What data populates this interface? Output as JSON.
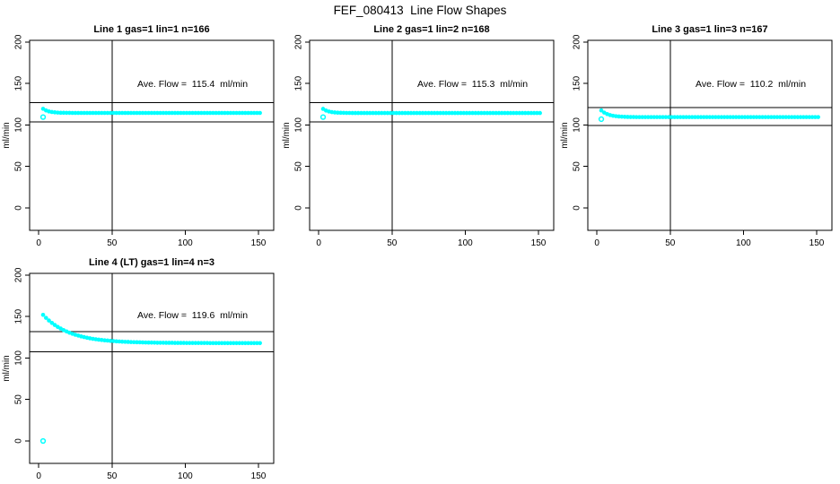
{
  "page": {
    "title": "FEF_080413  Line Flow Shapes",
    "background": "#ffffff",
    "accent_color": "#00ffff"
  },
  "chart_data": [
    {
      "type": "scatter",
      "title": "Line 1 gas=1 lin=1 n=166",
      "annotation": "Ave. Flow =  115.4  ml/min",
      "ave_flow": 115.4,
      "unit": "ml/min",
      "xlabel": "",
      "ylabel": "ml/min",
      "x_ticks": [
        0,
        50,
        100,
        150
      ],
      "y_ticks": [
        0,
        50,
        100,
        150,
        200
      ],
      "xlim": [
        -6.2,
        160.4
      ],
      "ylim": [
        -27,
        202
      ],
      "grid": false,
      "vline_x": 50,
      "hlines": [
        126.9,
        103.9
      ],
      "point_color": "#00ffff",
      "annotation_pos": [
        105,
        146
      ],
      "outliers": [
        [
          3,
          109.5
        ]
      ],
      "points": [
        [
          3,
          119.5
        ],
        [
          5,
          117.5
        ],
        [
          7,
          116.3
        ],
        [
          9,
          115.6
        ],
        [
          11,
          115.2
        ],
        [
          13,
          114.9
        ],
        [
          15,
          114.7
        ],
        [
          17,
          114.7
        ],
        [
          19,
          114.6
        ],
        [
          21,
          114.6
        ],
        [
          23,
          114.5
        ],
        [
          25,
          114.5
        ],
        [
          27,
          114.5
        ],
        [
          29,
          114.5
        ],
        [
          31,
          114.5
        ],
        [
          33,
          114.5
        ],
        [
          35,
          114.5
        ],
        [
          37,
          114.5
        ],
        [
          39,
          114.5
        ],
        [
          41,
          114.5
        ],
        [
          43,
          114.5
        ],
        [
          45,
          114.5
        ],
        [
          47,
          114.5
        ],
        [
          49,
          114.5
        ],
        [
          51,
          114.5
        ],
        [
          53,
          114.5
        ],
        [
          55,
          114.5
        ],
        [
          57,
          114.5
        ],
        [
          59,
          114.5
        ],
        [
          61,
          114.5
        ],
        [
          63,
          114.5
        ],
        [
          65,
          114.5
        ],
        [
          67,
          114.5
        ],
        [
          69,
          114.5
        ],
        [
          71,
          114.5
        ],
        [
          73,
          114.5
        ],
        [
          75,
          114.5
        ],
        [
          77,
          114.5
        ],
        [
          79,
          114.5
        ],
        [
          81,
          114.5
        ],
        [
          83,
          114.5
        ],
        [
          85,
          114.5
        ],
        [
          87,
          114.5
        ],
        [
          89,
          114.5
        ],
        [
          91,
          114.5
        ],
        [
          93,
          114.5
        ],
        [
          95,
          114.5
        ],
        [
          97,
          114.5
        ],
        [
          99,
          114.5
        ],
        [
          101,
          114.5
        ],
        [
          103,
          114.5
        ],
        [
          105,
          114.5
        ],
        [
          107,
          114.5
        ],
        [
          109,
          114.5
        ],
        [
          111,
          114.5
        ],
        [
          113,
          114.5
        ],
        [
          115,
          114.5
        ],
        [
          117,
          114.5
        ],
        [
          119,
          114.5
        ],
        [
          121,
          114.5
        ],
        [
          123,
          114.5
        ],
        [
          125,
          114.5
        ],
        [
          127,
          114.5
        ],
        [
          129,
          114.5
        ],
        [
          131,
          114.5
        ],
        [
          133,
          114.5
        ],
        [
          135,
          114.5
        ],
        [
          137,
          114.5
        ],
        [
          139,
          114.5
        ],
        [
          141,
          114.5
        ],
        [
          143,
          114.5
        ],
        [
          145,
          114.5
        ],
        [
          147,
          114.5
        ],
        [
          149,
          114.5
        ],
        [
          151,
          114.5
        ]
      ]
    },
    {
      "type": "scatter",
      "title": "Line 2 gas=1 lin=2 n=168",
      "annotation": "Ave. Flow =  115.3  ml/min",
      "ave_flow": 115.3,
      "unit": "ml/min",
      "xlabel": "",
      "ylabel": "ml/min",
      "x_ticks": [
        0,
        50,
        100,
        150
      ],
      "y_ticks": [
        0,
        50,
        100,
        150,
        200
      ],
      "xlim": [
        -6.2,
        160.4
      ],
      "ylim": [
        -27,
        202
      ],
      "grid": false,
      "vline_x": 50,
      "hlines": [
        126.8,
        103.8
      ],
      "point_color": "#00ffff",
      "annotation_pos": [
        105,
        146
      ],
      "outliers": [
        [
          3,
          109.5
        ]
      ],
      "points": [
        [
          3,
          119.4
        ],
        [
          5,
          117.4
        ],
        [
          7,
          116.2
        ],
        [
          9,
          115.5
        ],
        [
          11,
          115.1
        ],
        [
          13,
          114.8
        ],
        [
          15,
          114.7
        ],
        [
          17,
          114.6
        ],
        [
          19,
          114.5
        ],
        [
          21,
          114.5
        ],
        [
          23,
          114.4
        ],
        [
          25,
          114.4
        ],
        [
          27,
          114.4
        ],
        [
          29,
          114.4
        ],
        [
          31,
          114.4
        ],
        [
          33,
          114.4
        ],
        [
          35,
          114.4
        ],
        [
          37,
          114.4
        ],
        [
          39,
          114.4
        ],
        [
          41,
          114.4
        ],
        [
          43,
          114.4
        ],
        [
          45,
          114.4
        ],
        [
          47,
          114.4
        ],
        [
          49,
          114.4
        ],
        [
          51,
          114.4
        ],
        [
          53,
          114.4
        ],
        [
          55,
          114.4
        ],
        [
          57,
          114.4
        ],
        [
          59,
          114.4
        ],
        [
          61,
          114.4
        ],
        [
          63,
          114.4
        ],
        [
          65,
          114.4
        ],
        [
          67,
          114.4
        ],
        [
          69,
          114.4
        ],
        [
          71,
          114.4
        ],
        [
          73,
          114.4
        ],
        [
          75,
          114.4
        ],
        [
          77,
          114.4
        ],
        [
          79,
          114.4
        ],
        [
          81,
          114.4
        ],
        [
          83,
          114.4
        ],
        [
          85,
          114.4
        ],
        [
          87,
          114.4
        ],
        [
          89,
          114.4
        ],
        [
          91,
          114.4
        ],
        [
          93,
          114.4
        ],
        [
          95,
          114.4
        ],
        [
          97,
          114.4
        ],
        [
          99,
          114.4
        ],
        [
          101,
          114.4
        ],
        [
          103,
          114.4
        ],
        [
          105,
          114.4
        ],
        [
          107,
          114.4
        ],
        [
          109,
          114.4
        ],
        [
          111,
          114.4
        ],
        [
          113,
          114.4
        ],
        [
          115,
          114.4
        ],
        [
          117,
          114.4
        ],
        [
          119,
          114.4
        ],
        [
          121,
          114.4
        ],
        [
          123,
          114.4
        ],
        [
          125,
          114.4
        ],
        [
          127,
          114.4
        ],
        [
          129,
          114.4
        ],
        [
          131,
          114.4
        ],
        [
          133,
          114.4
        ],
        [
          135,
          114.4
        ],
        [
          137,
          114.4
        ],
        [
          139,
          114.4
        ],
        [
          141,
          114.4
        ],
        [
          143,
          114.4
        ],
        [
          145,
          114.4
        ],
        [
          147,
          114.4
        ],
        [
          149,
          114.4
        ],
        [
          151,
          114.4
        ]
      ]
    },
    {
      "type": "scatter",
      "title": "Line 3 gas=1 lin=3 n=167",
      "annotation": "Ave. Flow =  110.2  ml/min",
      "ave_flow": 110.2,
      "unit": "ml/min",
      "xlabel": "",
      "ylabel": "ml/min",
      "x_ticks": [
        0,
        50,
        100,
        150
      ],
      "y_ticks": [
        0,
        50,
        100,
        150,
        200
      ],
      "xlim": [
        -6.2,
        160.4
      ],
      "ylim": [
        -27,
        202
      ],
      "grid": false,
      "vline_x": 50,
      "hlines": [
        121.2,
        99.2
      ],
      "point_color": "#00ffff",
      "annotation_pos": [
        105,
        146
      ],
      "outliers": [
        [
          3,
          107.0
        ]
      ],
      "points": [
        [
          3,
          117.5
        ],
        [
          5,
          114.9
        ],
        [
          7,
          113.1
        ],
        [
          9,
          111.9
        ],
        [
          11,
          111.1
        ],
        [
          13,
          110.6
        ],
        [
          15,
          110.2
        ],
        [
          17,
          110.0
        ],
        [
          19,
          109.8
        ],
        [
          21,
          109.7
        ],
        [
          23,
          109.6
        ],
        [
          25,
          109.6
        ],
        [
          27,
          109.5
        ],
        [
          29,
          109.5
        ],
        [
          31,
          109.5
        ],
        [
          33,
          109.5
        ],
        [
          35,
          109.5
        ],
        [
          37,
          109.5
        ],
        [
          39,
          109.5
        ],
        [
          41,
          109.5
        ],
        [
          43,
          109.5
        ],
        [
          45,
          109.5
        ],
        [
          47,
          109.5
        ],
        [
          49,
          109.5
        ],
        [
          51,
          109.5
        ],
        [
          53,
          109.5
        ],
        [
          55,
          109.5
        ],
        [
          57,
          109.5
        ],
        [
          59,
          109.5
        ],
        [
          61,
          109.5
        ],
        [
          63,
          109.5
        ],
        [
          65,
          109.5
        ],
        [
          67,
          109.5
        ],
        [
          69,
          109.5
        ],
        [
          71,
          109.5
        ],
        [
          73,
          109.5
        ],
        [
          75,
          109.5
        ],
        [
          77,
          109.5
        ],
        [
          79,
          109.5
        ],
        [
          81,
          109.5
        ],
        [
          83,
          109.5
        ],
        [
          85,
          109.5
        ],
        [
          87,
          109.5
        ],
        [
          89,
          109.5
        ],
        [
          91,
          109.5
        ],
        [
          93,
          109.5
        ],
        [
          95,
          109.5
        ],
        [
          97,
          109.5
        ],
        [
          99,
          109.5
        ],
        [
          101,
          109.5
        ],
        [
          103,
          109.5
        ],
        [
          105,
          109.5
        ],
        [
          107,
          109.5
        ],
        [
          109,
          109.5
        ],
        [
          111,
          109.5
        ],
        [
          113,
          109.5
        ],
        [
          115,
          109.5
        ],
        [
          117,
          109.5
        ],
        [
          119,
          109.5
        ],
        [
          121,
          109.5
        ],
        [
          123,
          109.5
        ],
        [
          125,
          109.5
        ],
        [
          127,
          109.5
        ],
        [
          129,
          109.5
        ],
        [
          131,
          109.5
        ],
        [
          133,
          109.5
        ],
        [
          135,
          109.5
        ],
        [
          137,
          109.5
        ],
        [
          139,
          109.5
        ],
        [
          141,
          109.5
        ],
        [
          143,
          109.5
        ],
        [
          145,
          109.5
        ],
        [
          147,
          109.5
        ],
        [
          149,
          109.5
        ],
        [
          151,
          109.5
        ]
      ]
    },
    {
      "type": "scatter",
      "title": "Line 4 (LT) gas=1 lin=4 n=3",
      "annotation": "Ave. Flow =  119.6  ml/min",
      "ave_flow": 119.6,
      "unit": "ml/min",
      "xlabel": "",
      "ylabel": "ml/min",
      "x_ticks": [
        0,
        50,
        100,
        150
      ],
      "y_ticks": [
        0,
        50,
        100,
        150,
        200
      ],
      "xlim": [
        -6.2,
        160.4
      ],
      "ylim": [
        -27,
        202
      ],
      "grid": false,
      "vline_x": 50,
      "hlines": [
        131.6,
        107.6
      ],
      "point_color": "#00ffff",
      "annotation_pos": [
        105,
        148
      ],
      "outliers": [
        [
          3,
          0
        ]
      ],
      "points": [
        [
          3,
          152.0
        ],
        [
          5,
          148.4
        ],
        [
          7,
          145.2
        ],
        [
          9,
          142.3
        ],
        [
          11,
          139.8
        ],
        [
          13,
          137.5
        ],
        [
          15,
          135.5
        ],
        [
          17,
          133.6
        ],
        [
          19,
          132.0
        ],
        [
          21,
          130.5
        ],
        [
          23,
          129.2
        ],
        [
          25,
          128.0
        ],
        [
          27,
          127.0
        ],
        [
          29,
          126.0
        ],
        [
          31,
          125.2
        ],
        [
          33,
          124.4
        ],
        [
          35,
          123.7
        ],
        [
          37,
          123.1
        ],
        [
          39,
          122.6
        ],
        [
          41,
          122.1
        ],
        [
          43,
          121.7
        ],
        [
          45,
          121.3
        ],
        [
          47,
          121.0
        ],
        [
          49,
          120.6
        ],
        [
          51,
          120.4
        ],
        [
          53,
          120.1
        ],
        [
          55,
          119.9
        ],
        [
          57,
          119.7
        ],
        [
          59,
          119.5
        ],
        [
          61,
          119.4
        ],
        [
          63,
          119.2
        ],
        [
          65,
          119.1
        ],
        [
          67,
          119.0
        ],
        [
          69,
          118.9
        ],
        [
          71,
          118.8
        ],
        [
          73,
          118.7
        ],
        [
          75,
          118.6
        ],
        [
          77,
          118.6
        ],
        [
          79,
          118.5
        ],
        [
          81,
          118.4
        ],
        [
          83,
          118.4
        ],
        [
          85,
          118.4
        ],
        [
          87,
          118.3
        ],
        [
          89,
          118.3
        ],
        [
          91,
          118.3
        ],
        [
          93,
          118.2
        ],
        [
          95,
          118.2
        ],
        [
          97,
          118.2
        ],
        [
          99,
          118.2
        ],
        [
          101,
          118.1
        ],
        [
          103,
          118.1
        ],
        [
          105,
          118.1
        ],
        [
          107,
          118.1
        ],
        [
          109,
          118.1
        ],
        [
          111,
          118.1
        ],
        [
          113,
          118.1
        ],
        [
          115,
          118.1
        ],
        [
          117,
          118.0
        ],
        [
          119,
          118.0
        ],
        [
          121,
          118.0
        ],
        [
          123,
          118.0
        ],
        [
          125,
          118.0
        ],
        [
          127,
          118.0
        ],
        [
          129,
          118.0
        ],
        [
          131,
          118.0
        ],
        [
          133,
          118.0
        ],
        [
          135,
          118.0
        ],
        [
          137,
          118.0
        ],
        [
          139,
          118.0
        ],
        [
          141,
          118.0
        ],
        [
          143,
          118.0
        ],
        [
          145,
          118.0
        ],
        [
          147,
          118.0
        ],
        [
          149,
          118.0
        ],
        [
          151,
          118.0
        ]
      ]
    }
  ]
}
